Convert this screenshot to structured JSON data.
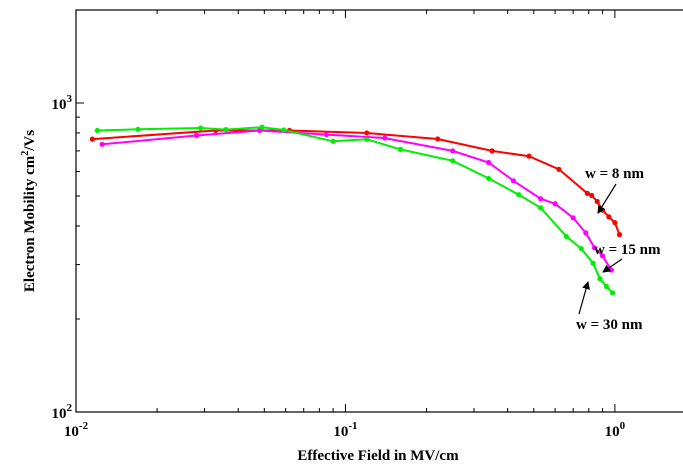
{
  "chart_data": {
    "type": "line",
    "xlabel": "Effective Field in MV/cm",
    "ylabel_main": "Electron Mobility cm",
    "ylabel_sup": "2",
    "ylabel_tail": "/Vs",
    "xscale": "log",
    "yscale": "log",
    "xlim": [
      0.01,
      2
    ],
    "ylim": [
      100,
      2000
    ],
    "grid": false,
    "x_ticks": [
      {
        "value": 0.01,
        "base": "10",
        "exp": "-2"
      },
      {
        "value": 0.1,
        "base": "10",
        "exp": "-1"
      },
      {
        "value": 1,
        "base": "10",
        "exp": "0"
      }
    ],
    "y_ticks": [
      {
        "value": 100,
        "base": "10",
        "exp": "2"
      },
      {
        "value": 1000,
        "base": "10",
        "exp": "3"
      }
    ],
    "series": [
      {
        "name": "w = 8 nm",
        "color": "#ff0000",
        "points": [
          [
            0.0115,
            764
          ],
          [
            0.033,
            815
          ],
          [
            0.062,
            815
          ],
          [
            0.12,
            800
          ],
          [
            0.22,
            765
          ],
          [
            0.35,
            700
          ],
          [
            0.48,
            673
          ],
          [
            0.62,
            610
          ],
          [
            0.79,
            510
          ],
          [
            0.82,
            502
          ],
          [
            0.86,
            480
          ],
          [
            0.9,
            450
          ],
          [
            0.95,
            428
          ],
          [
            1.0,
            410
          ],
          [
            1.04,
            375
          ]
        ]
      },
      {
        "name": "w = 15 nm",
        "color": "#ff00ff",
        "points": [
          [
            0.0125,
            735
          ],
          [
            0.028,
            785
          ],
          [
            0.048,
            815
          ],
          [
            0.085,
            790
          ],
          [
            0.14,
            770
          ],
          [
            0.25,
            700
          ],
          [
            0.34,
            642
          ],
          [
            0.42,
            560
          ],
          [
            0.53,
            490
          ],
          [
            0.6,
            472
          ],
          [
            0.7,
            425
          ],
          [
            0.78,
            380
          ],
          [
            0.84,
            340
          ],
          [
            0.9,
            320
          ],
          [
            0.97,
            288
          ]
        ]
      },
      {
        "name": "w = 30 nm",
        "color": "#00ee00",
        "points": [
          [
            0.012,
            815
          ],
          [
            0.017,
            822
          ],
          [
            0.029,
            830
          ],
          [
            0.036,
            820
          ],
          [
            0.049,
            835
          ],
          [
            0.059,
            818
          ],
          [
            0.09,
            752
          ],
          [
            0.12,
            763
          ],
          [
            0.16,
            708
          ],
          [
            0.25,
            650
          ],
          [
            0.34,
            570
          ],
          [
            0.44,
            505
          ],
          [
            0.53,
            458
          ],
          [
            0.66,
            370
          ],
          [
            0.75,
            338
          ],
          [
            0.83,
            303
          ],
          [
            0.88,
            270
          ],
          [
            0.93,
            255
          ],
          [
            0.98,
            243
          ]
        ]
      }
    ],
    "annotations": [
      {
        "text": "w = 8 nm"
      },
      {
        "text": "w = 15 nm"
      },
      {
        "text": "w = 30 nm"
      }
    ]
  }
}
